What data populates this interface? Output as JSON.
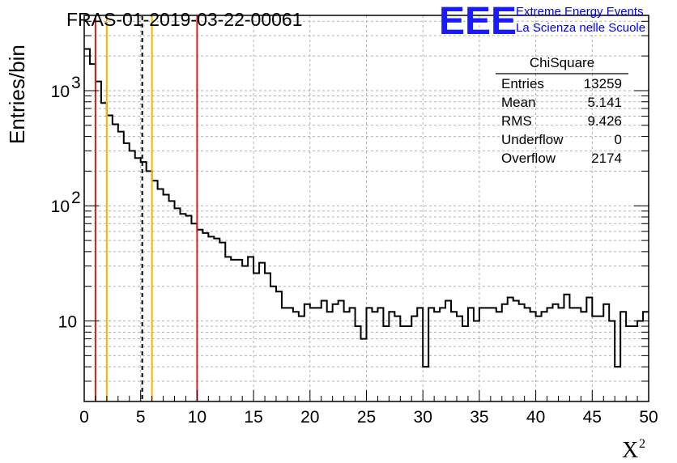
{
  "chart_data": {
    "type": "bar",
    "title": "FRAS-01-2019-03-22-00061",
    "xlabel": "X",
    "xlabel_superscript": "2",
    "ylabel": "Entries/bin",
    "xlim": [
      0,
      50
    ],
    "ylim": [
      2,
      4500
    ],
    "yscale": "log",
    "grid": true,
    "bin_width": 0.5,
    "x_ticks": [
      "0",
      "5",
      "10",
      "15",
      "20",
      "25",
      "30",
      "35",
      "40",
      "45",
      "50"
    ],
    "y_ticks": [
      {
        "base": "10",
        "exp": "3",
        "value": 1000
      },
      {
        "base": "10",
        "exp": "2",
        "value": 100
      },
      {
        "base": "10",
        "exp": "",
        "value": 10
      }
    ],
    "values": [
      2300,
      1700,
      1200,
      780,
      610,
      510,
      440,
      350,
      300,
      260,
      240,
      200,
      165,
      140,
      125,
      110,
      95,
      85,
      82,
      70,
      62,
      58,
      54,
      52,
      48,
      36,
      34,
      34,
      30,
      36,
      26,
      32,
      26,
      20,
      18,
      13,
      13,
      12,
      11,
      14,
      13,
      13,
      15,
      12,
      14,
      15,
      12,
      13,
      9,
      7,
      13,
      12,
      13,
      9,
      12,
      11,
      9,
      9,
      11,
      13,
      4,
      13,
      12,
      13,
      15,
      12,
      11,
      9,
      13,
      10,
      13,
      13,
      13,
      12,
      14,
      16,
      15,
      14,
      13,
      12,
      11,
      12,
      13,
      14,
      13,
      17,
      13,
      13,
      12,
      16,
      11,
      11,
      14,
      10,
      4,
      12,
      9,
      9,
      10,
      12
    ],
    "vertical_lines": [
      {
        "x": 1,
        "color": "#d42020",
        "style": "solid"
      },
      {
        "x": 2,
        "color": "#f2b800",
        "style": "solid"
      },
      {
        "x": 5.141,
        "color": "#000000",
        "style": "dashed"
      },
      {
        "x": 6,
        "color": "#f2b800",
        "style": "solid"
      },
      {
        "x": 10,
        "color": "#d42020",
        "style": "solid"
      }
    ],
    "stats_box": {
      "title": "ChiSquare",
      "rows": [
        {
          "label": "Entries",
          "value": "13259"
        },
        {
          "label": "Mean",
          "value": "5.141"
        },
        {
          "label": "RMS",
          "value": "9.426"
        },
        {
          "label": "Underflow",
          "value": "0"
        },
        {
          "label": "Overflow",
          "value": "2174"
        }
      ]
    }
  },
  "branding": {
    "logo": "EEE",
    "line1": "Extreme Energy Events",
    "line2": "La Scienza nelle Scuole",
    "color": "#0000ff"
  }
}
